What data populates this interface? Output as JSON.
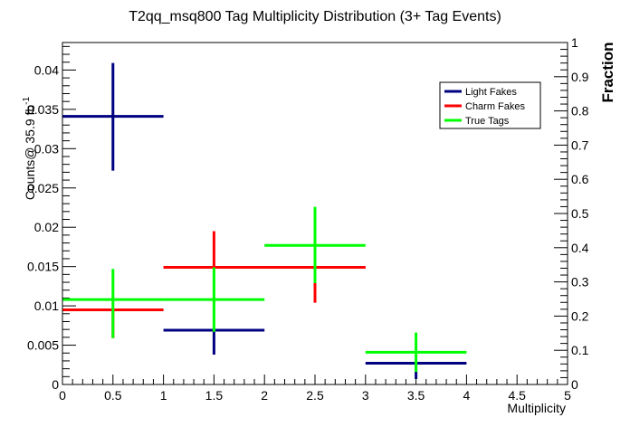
{
  "chart_data": {
    "type": "scatter",
    "title": "T2qq_msq800 Tag Multiplicity Distribution (3+ Tag Events)",
    "xlabel": "Multiplicity",
    "ylabel": "Counts@ 35.9 fb",
    "ylabel_superscript": "-1",
    "y2label": "Fraction",
    "xlim": [
      0,
      5
    ],
    "ylim": [
      0,
      0.0435
    ],
    "y2lim": [
      0,
      1
    ],
    "xticks": [
      "0",
      "0.5",
      "1",
      "1.5",
      "2",
      "2.5",
      "3",
      "3.5",
      "4",
      "4.5",
      "5"
    ],
    "yticks": [
      "0",
      "0.005",
      "0.01",
      "0.015",
      "0.02",
      "0.025",
      "0.03",
      "0.035",
      "0.04"
    ],
    "y2ticks": [
      "0",
      "0.1",
      "0.2",
      "0.3",
      "0.4",
      "0.5",
      "0.6",
      "0.7",
      "0.8",
      "0.9",
      "1"
    ],
    "legend_position": "top-right",
    "series": [
      {
        "name": "Light Fakes",
        "color": "#000080",
        "points": [
          {
            "xlo": 0,
            "xhi": 1,
            "x": 0.5,
            "y": 0.0341,
            "ylo": 0.0272,
            "yhi": 0.0409
          },
          {
            "xlo": 1,
            "xhi": 2,
            "x": 1.5,
            "y": 0.0069,
            "ylo": 0.0038,
            "yhi": 0.0069
          },
          {
            "xlo": 3,
            "xhi": 4,
            "x": 3.5,
            "y": 0.0027,
            "ylo": 0.0007,
            "yhi": 0.0027
          }
        ]
      },
      {
        "name": "Charm Fakes",
        "color": "#ff0000",
        "points": [
          {
            "xlo": 0,
            "xhi": 1,
            "x": 0.5,
            "y": 0.0095,
            "ylo": 0.0059,
            "yhi": 0.0095
          },
          {
            "xlo": 1,
            "xhi": 3,
            "x": 1.5,
            "y": 0.0149,
            "ylo": 0.0149,
            "yhi": 0.0195
          },
          {
            "xlo": 1,
            "xhi": 3,
            "x": 2.5,
            "y": 0.0149,
            "ylo": 0.0104,
            "yhi": 0.0149
          }
        ]
      },
      {
        "name": "True Tags",
        "color": "#00ff00",
        "points": [
          {
            "xlo": 0,
            "xhi": 1,
            "x": 0.5,
            "y": 0.0108,
            "ylo": 0.0059,
            "yhi": 0.0147
          },
          {
            "xlo": 1,
            "xhi": 2,
            "x": 1.5,
            "y": 0.0108,
            "ylo": 0.0067,
            "yhi": 0.0149
          },
          {
            "xlo": 2,
            "xhi": 3,
            "x": 2.5,
            "y": 0.0177,
            "ylo": 0.0129,
            "yhi": 0.0226
          },
          {
            "xlo": 3,
            "xhi": 4,
            "x": 3.5,
            "y": 0.0041,
            "ylo": 0.0016,
            "yhi": 0.0066
          }
        ]
      }
    ]
  }
}
